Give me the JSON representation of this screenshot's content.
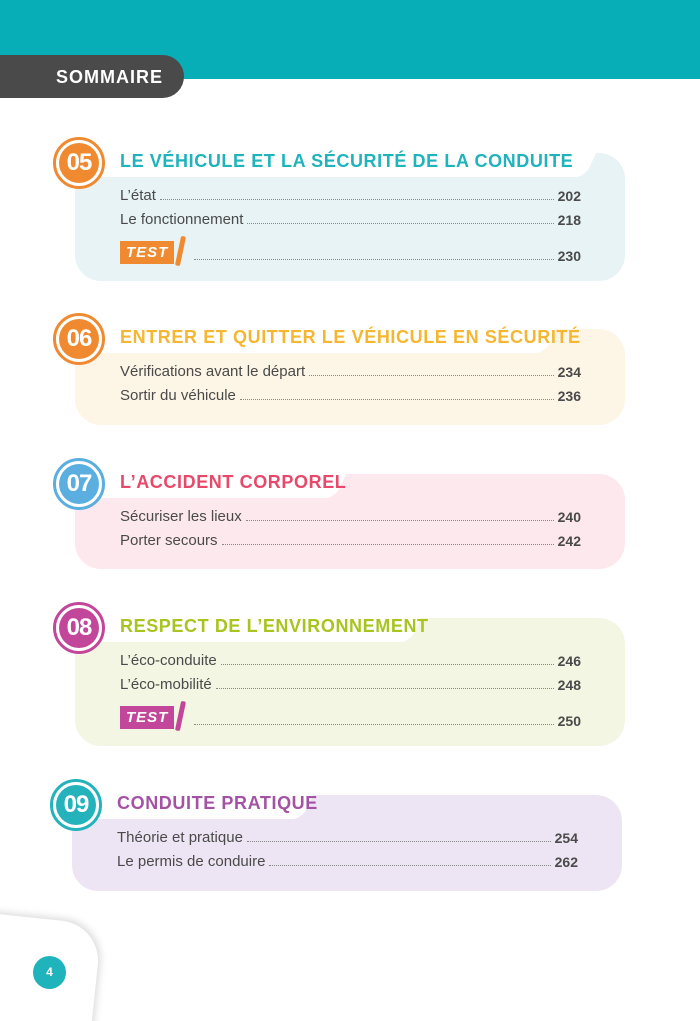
{
  "header": {
    "title": "SOMMAIRE"
  },
  "sections": [
    {
      "number": "05",
      "title": "LE VÉHICULE ET LA SÉCURITÉ DE LA CONDUITE",
      "badge_color": "#f08a30",
      "title_color": "#1fb3bb",
      "bg_color": "#e7f3f5",
      "entries": [
        {
          "label": "L’état",
          "page": "202"
        },
        {
          "label": "Le fonctionnement",
          "page": "218"
        },
        {
          "label": "TEST",
          "page": "230",
          "is_test": true
        }
      ]
    },
    {
      "number": "06",
      "title": "ENTRER ET QUITTER LE VÉHICULE EN SÉCURITÉ",
      "badge_color": "#f08a30",
      "title_color": "#f5b731",
      "bg_color": "#fdf5e5",
      "entries": [
        {
          "label": "Vérifications avant le départ",
          "page": "234"
        },
        {
          "label": "Sortir du véhicule",
          "page": "236"
        }
      ]
    },
    {
      "number": "07",
      "title": "L’ACCIDENT CORPOREL",
      "badge_color": "#5aaee0",
      "title_color": "#e8486a",
      "bg_color": "#fde8ed",
      "entries": [
        {
          "label": "Sécuriser les lieux",
          "page": "240"
        },
        {
          "label": "Porter secours",
          "page": "242"
        }
      ]
    },
    {
      "number": "08",
      "title": "RESPECT DE L’ENVIRONNEMENT",
      "badge_color": "#c2479a",
      "title_color": "#a8c41e",
      "bg_color": "#f2f6e3",
      "entries": [
        {
          "label": "L’éco-conduite",
          "page": "246"
        },
        {
          "label": "L’éco-mobilité",
          "page": "248"
        },
        {
          "label": "TEST",
          "page": "250",
          "is_test": true
        }
      ]
    },
    {
      "number": "09",
      "title": "CONDUITE PRATIQUE",
      "badge_color": "#25b3bb",
      "title_color": "#a453a4",
      "bg_color": "#eee5f4",
      "entries": [
        {
          "label": "Théorie et pratique",
          "page": "254"
        },
        {
          "label": "Le permis de conduire",
          "page": "262"
        }
      ]
    }
  ],
  "footer": {
    "page_number": "4"
  }
}
